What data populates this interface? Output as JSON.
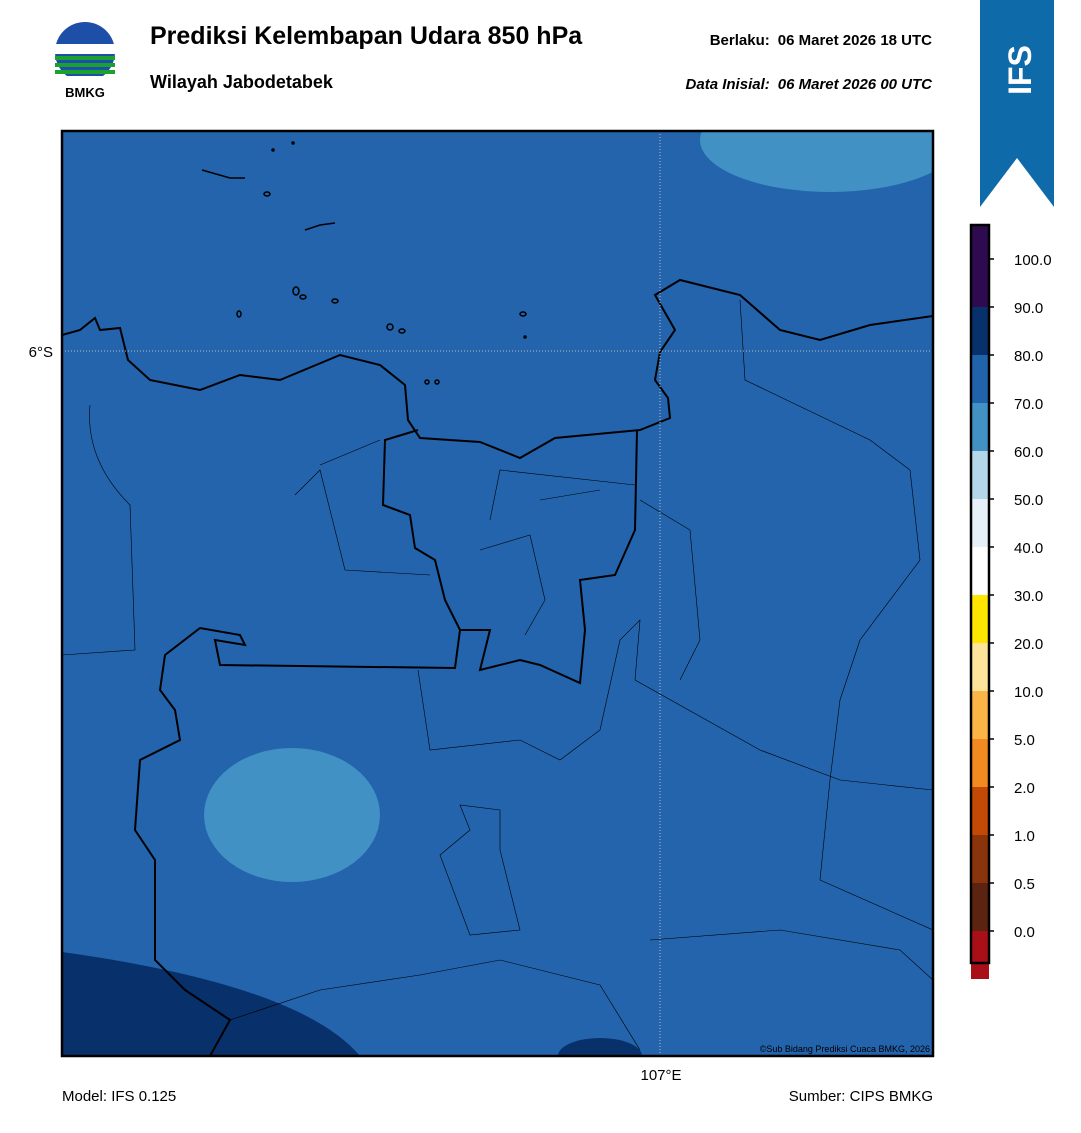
{
  "header": {
    "title": "Prediksi Kelembapan Udara 850 hPa",
    "subtitle": "Wilayah Jabodetabek",
    "valid_label": "Berlaku:",
    "valid_time": "06 Maret 2026 18 UTC",
    "init_label": "Data Inisial:",
    "init_time": "06 Maret 2026 00 UTC",
    "logo_text": "BMKG",
    "badge": "IFS"
  },
  "map": {
    "lat_label": "6°S",
    "lon_label": "107°E",
    "credit": "©Sub Bidang Prediksi Cuaca BMKG, 2026"
  },
  "colorbar": {
    "labels": [
      "0.0",
      "0.5",
      "1.0",
      "2.0",
      "5.0",
      "10.0",
      "20.0",
      "30.0",
      "40.0",
      "50.0",
      "60.0",
      "70.0",
      "80.0",
      "90.0",
      "100.0"
    ],
    "colors": [
      "#e33b2e",
      "#a90f17",
      "#5a2410",
      "#8a340b",
      "#c24a06",
      "#f18a20",
      "#fbb446",
      "#fee39a",
      "#ffe500",
      "#ffffff",
      "#e6f0f8",
      "#b3d7e8",
      "#4191c5",
      "#2163ab",
      "#08306b",
      "#2e0b4e"
    ]
  },
  "footer": {
    "model": "Model: IFS 0.125",
    "source": "Sumber: CIPS BMKG"
  }
}
